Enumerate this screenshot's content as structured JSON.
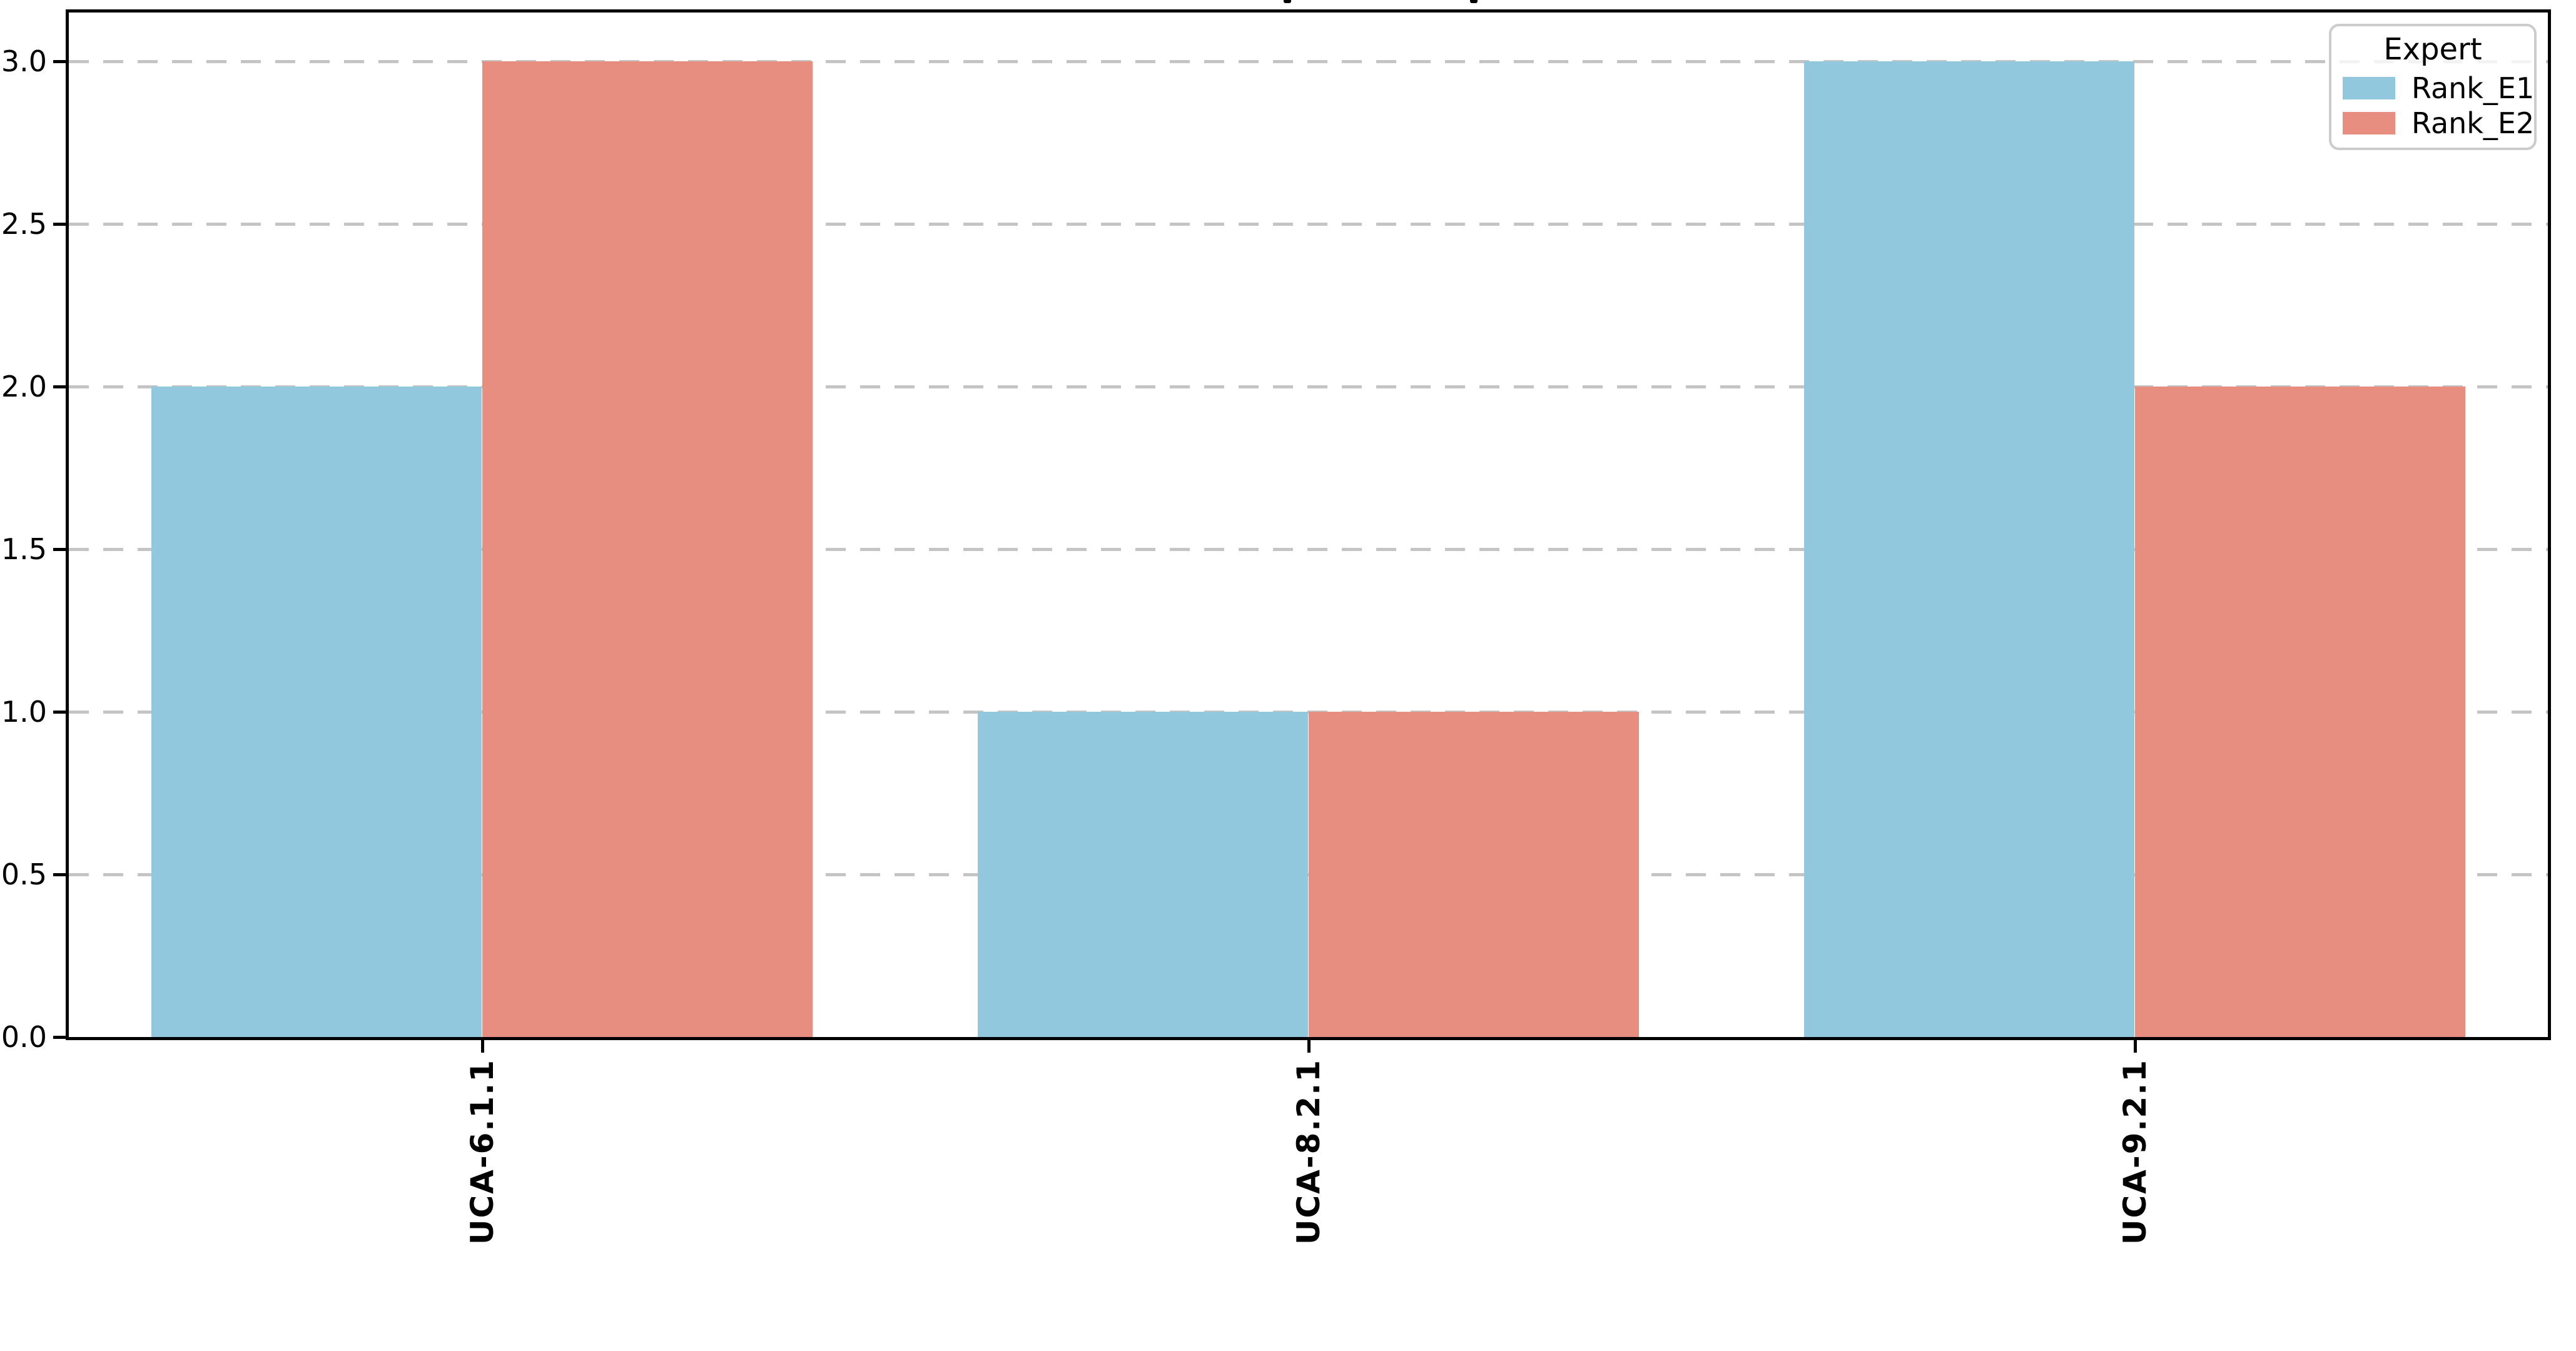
{
  "chart_data": {
    "type": "bar",
    "categories": [
      "UCA-6.1.1",
      "UCA-8.2.1",
      "UCA-9.2.1"
    ],
    "series": [
      {
        "name": "Rank_E1",
        "color": "#92c8de",
        "values": [
          2.0,
          1.0,
          3.0
        ]
      },
      {
        "name": "Rank_E2",
        "color": "#e88e81",
        "values": [
          3.0,
          1.0,
          2.0
        ]
      }
    ],
    "legend": {
      "title": "Expert",
      "position": "upper-right",
      "entries": [
        "Rank_E1",
        "Rank_E2"
      ]
    },
    "ylim": [
      0,
      3.15
    ],
    "yticks": [
      0.0,
      0.5,
      1.0,
      1.5,
      2.0,
      2.5,
      3.0
    ],
    "ytick_labels": [
      "0.0",
      "0.5",
      "1.0",
      "1.5",
      "2.0",
      "2.5",
      "3.0"
    ],
    "xtick_rotation_deg": 90,
    "bar_width_category_fraction": 0.4,
    "grid": {
      "axis": "y",
      "style": "dashed",
      "color": "#c4c4c4"
    },
    "axes": {
      "spine_color": "#000000",
      "tick_color": "#000000",
      "label_color": "#000000"
    }
  }
}
